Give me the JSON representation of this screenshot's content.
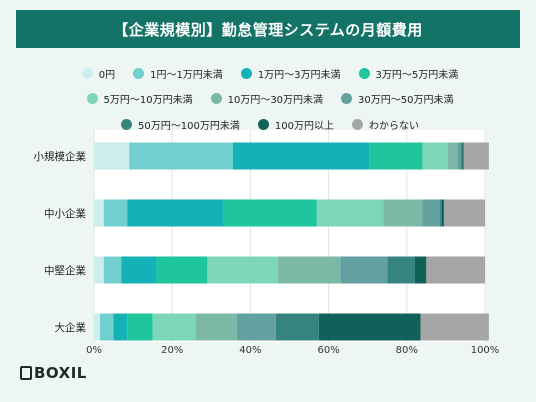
{
  "title": "【企業規模別】勤怠管理システムの月額費用",
  "brand": {
    "name": "BOXIL",
    "mark": "BX"
  },
  "colors": {
    "title_bg": "#137366",
    "background": "#eef6f3",
    "plot_bg": "#ffffff"
  },
  "chart_data": {
    "type": "bar",
    "orientation": "horizontal",
    "stacked": true,
    "title": "【企業規模別】勤怠管理システムの月額費用",
    "xlabel": "",
    "ylabel": "",
    "xlim": [
      0,
      100
    ],
    "x_ticks": [
      "0%",
      "20%",
      "40%",
      "60%",
      "80%",
      "100%"
    ],
    "grid": true,
    "legend_position": "top",
    "categories": [
      "小規模企業",
      "中小企業",
      "中堅企業",
      "大企業"
    ],
    "series": [
      {
        "name": "0円",
        "color": "#cdeeee",
        "values": [
          9,
          2.5,
          2.5,
          1.5
        ]
      },
      {
        "name": "1円〜1万円未満",
        "color": "#72cfcf",
        "values": [
          26.5,
          6,
          4.5,
          3.5
        ]
      },
      {
        "name": "1万円〜3万円未満",
        "color": "#14b2b6",
        "values": [
          35,
          24.5,
          9,
          3.5
        ]
      },
      {
        "name": "3万円〜5万円未満",
        "color": "#1fc59c",
        "values": [
          13.5,
          24,
          13,
          6.5
        ]
      },
      {
        "name": "5万円〜10万円未満",
        "color": "#7cd7b8",
        "values": [
          6.5,
          17,
          18,
          11
        ]
      },
      {
        "name": "10万円〜30万円未満",
        "color": "#7bb8a5",
        "values": [
          2.5,
          10,
          16,
          10.5
        ]
      },
      {
        "name": "30万円〜50万円未満",
        "color": "#63a1a1",
        "values": [
          0.8,
          4.5,
          12,
          10
        ]
      },
      {
        "name": "50万円〜100万円未満",
        "color": "#36847e",
        "values": [
          0.4,
          0.5,
          7,
          11
        ]
      },
      {
        "name": "100万円以上",
        "color": "#10615a",
        "values": [
          0.3,
          0.5,
          3,
          26
        ]
      },
      {
        "name": "わからない",
        "color": "#a6a6a6",
        "values": [
          6.5,
          10.5,
          15,
          17.5
        ]
      }
    ]
  }
}
